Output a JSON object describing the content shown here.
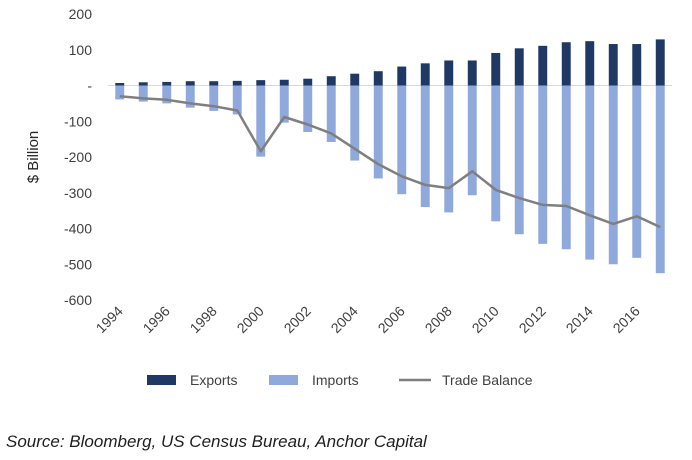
{
  "chart_data": {
    "type": "bar+line",
    "title": "",
    "xlabel": "",
    "ylabel": "$ Billion",
    "ylim": [
      -600,
      200
    ],
    "yticks": [
      200,
      100,
      0,
      -100,
      -200,
      -300,
      -400,
      -500,
      -600
    ],
    "ytick_labels": [
      "200",
      "100",
      "-",
      "-100",
      "-200",
      "-300",
      "-400",
      "-500",
      "-600"
    ],
    "categories": [
      1994,
      1995,
      1996,
      1997,
      1998,
      1999,
      2000,
      2001,
      2002,
      2003,
      2004,
      2005,
      2006,
      2007,
      2008,
      2009,
      2010,
      2011,
      2012,
      2013,
      2014,
      2015,
      2016,
      2017
    ],
    "xtick_labels": [
      "1994",
      "1996",
      "1998",
      "2000",
      "2002",
      "2004",
      "2006",
      "2008",
      "2010",
      "2012",
      "2014",
      "2016"
    ],
    "grid": false,
    "legend_position": "bottom",
    "series": [
      {
        "name": "Exports",
        "type": "bar",
        "color": "#203864",
        "values": [
          7,
          9,
          10,
          12,
          12,
          13,
          15,
          16,
          19,
          26,
          33,
          40,
          53,
          62,
          70,
          70,
          91,
          104,
          111,
          121,
          124,
          116,
          116,
          129
        ]
      },
      {
        "name": "Imports",
        "type": "bar",
        "color": "#8fa9dc",
        "values": [
          -39,
          -45,
          -50,
          -62,
          -71,
          -81,
          -199,
          -104,
          -130,
          -158,
          -210,
          -260,
          -304,
          -340,
          -355,
          -307,
          -380,
          -416,
          -443,
          -458,
          -487,
          -500,
          -482,
          -525
        ]
      },
      {
        "name": "Trade Balance",
        "type": "line",
        "color": "#7f7f7f",
        "values": [
          -30,
          -36,
          -40,
          -50,
          -58,
          -70,
          -184,
          -88,
          -109,
          -134,
          -177,
          -220,
          -254,
          -278,
          -287,
          -240,
          -292,
          -315,
          -334,
          -337,
          -363,
          -387,
          -366,
          -396
        ]
      }
    ],
    "source": "Source: Bloomberg, US Census Bureau, Anchor Capital"
  }
}
